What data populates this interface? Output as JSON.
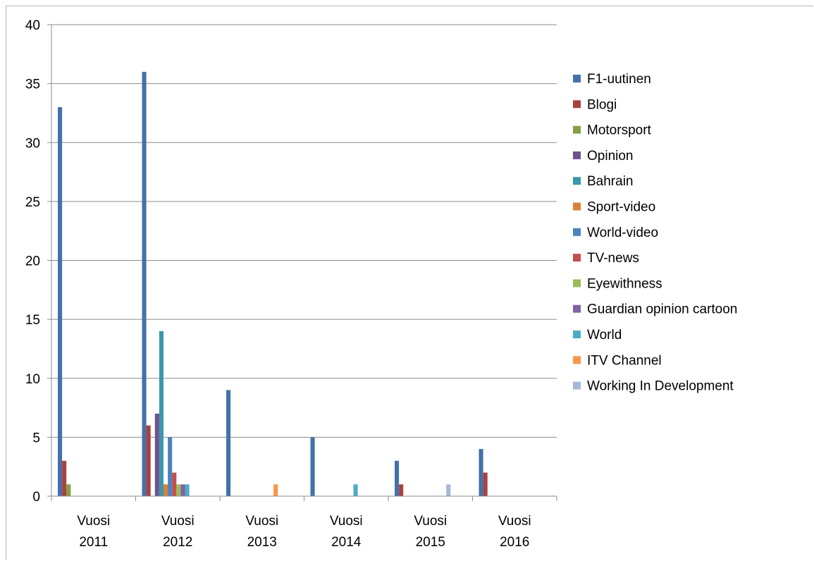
{
  "chart_data": {
    "type": "bar",
    "title": "",
    "xlabel": "",
    "ylabel": "",
    "ylim": [
      0,
      40
    ],
    "yticks": [
      0,
      5,
      10,
      15,
      20,
      25,
      30,
      35,
      40
    ],
    "grid": true,
    "legend_position": "right",
    "categories": [
      [
        "Vuosi",
        "2011"
      ],
      [
        "Vuosi",
        "2012"
      ],
      [
        "Vuosi",
        "2013"
      ],
      [
        "Vuosi",
        "2014"
      ],
      [
        "Vuosi",
        "2015"
      ],
      [
        "Vuosi",
        "2016"
      ]
    ],
    "series": [
      {
        "name": "F1-uutinen",
        "color": "#4472a8",
        "values": [
          33,
          36,
          9,
          5,
          3,
          4
        ]
      },
      {
        "name": "Blogi",
        "color": "#a9423f",
        "values": [
          3,
          6,
          0,
          0,
          1,
          2
        ]
      },
      {
        "name": "Motorsport",
        "color": "#86a045",
        "values": [
          1,
          0,
          0,
          0,
          0,
          0
        ]
      },
      {
        "name": "Opinion",
        "color": "#6e548d",
        "values": [
          0,
          7,
          0,
          0,
          0,
          0
        ]
      },
      {
        "name": "Bahrain",
        "color": "#3d96ab",
        "values": [
          0,
          14,
          0,
          0,
          0,
          0
        ]
      },
      {
        "name": "Sport-video",
        "color": "#da8138",
        "values": [
          0,
          1,
          0,
          0,
          0,
          0
        ]
      },
      {
        "name": "World-video",
        "color": "#4d82c0",
        "values": [
          0,
          5,
          0,
          0,
          0,
          0
        ]
      },
      {
        "name": "TV-news",
        "color": "#c4504d",
        "values": [
          0,
          2,
          0,
          0,
          0,
          0
        ]
      },
      {
        "name": "Eyewithness",
        "color": "#9bbb59",
        "values": [
          0,
          1,
          0,
          0,
          0,
          0
        ]
      },
      {
        "name": "Guardian opinion cartoon",
        "color": "#8064a2",
        "values": [
          0,
          1,
          0,
          0,
          0,
          0
        ]
      },
      {
        "name": "World",
        "color": "#4bacc6",
        "values": [
          0,
          1,
          0,
          1,
          0,
          0
        ]
      },
      {
        "name": "ITV Channel",
        "color": "#f79646",
        "values": [
          0,
          0,
          1,
          0,
          0,
          0
        ]
      },
      {
        "name": "Working In Development",
        "color": "#a6b8d9",
        "values": [
          0,
          0,
          0,
          0,
          1,
          0
        ]
      }
    ]
  }
}
